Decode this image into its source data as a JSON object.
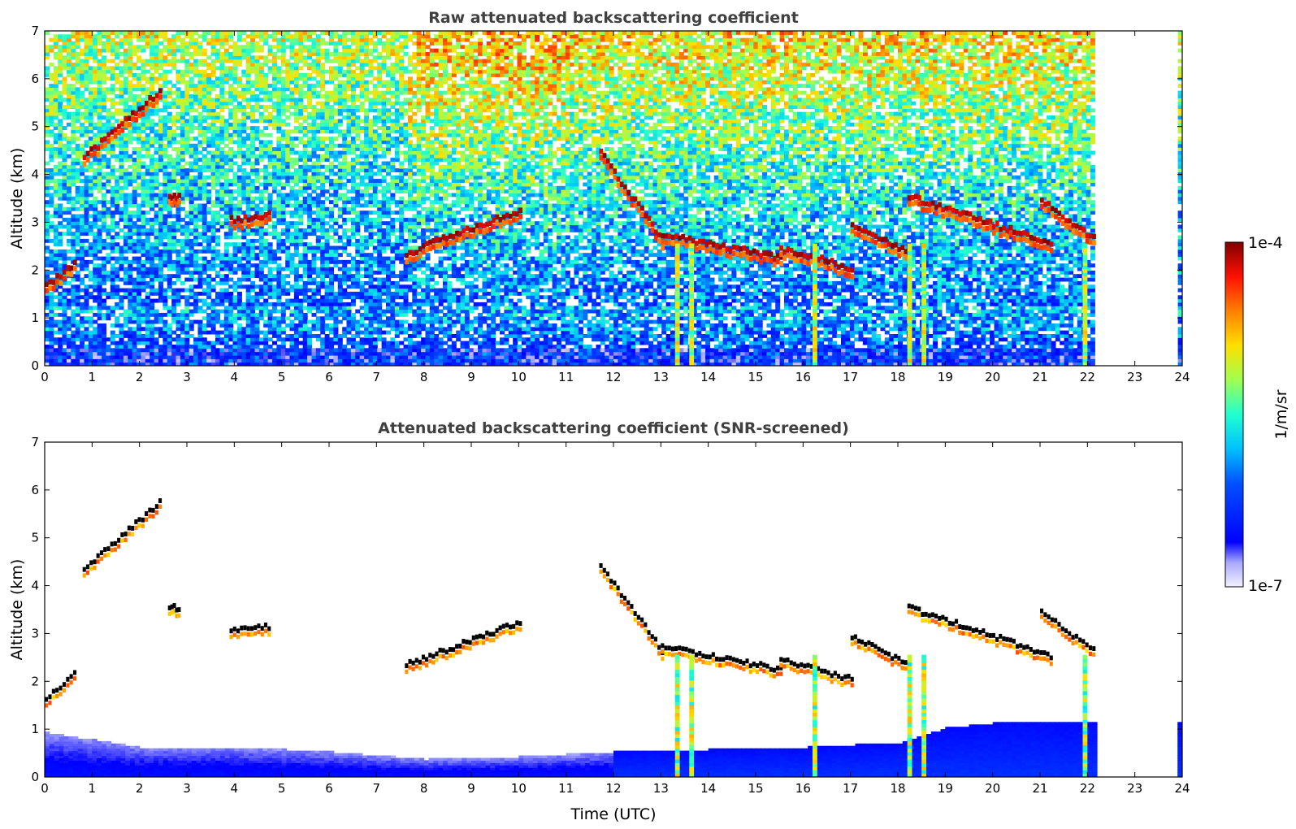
{
  "chart_data": [
    {
      "type": "heatmap",
      "title": "Raw attenuated backscattering coefficient",
      "xlabel": "",
      "ylabel": "Altitude (km)",
      "xlim": [
        0,
        24
      ],
      "ylim": [
        0,
        7
      ],
      "xticks": [
        "0",
        "1",
        "2",
        "3",
        "4",
        "5",
        "6",
        "7",
        "8",
        "9",
        "10",
        "11",
        "12",
        "13",
        "14",
        "15",
        "16",
        "17",
        "18",
        "19",
        "20",
        "21",
        "22",
        "23",
        "24"
      ],
      "yticks": [
        "0",
        "1",
        "2",
        "3",
        "4",
        "5",
        "6",
        "7"
      ],
      "data_gap_hours": [
        22.1,
        23.85
      ],
      "cloud_layers": [
        {
          "t_start": 0.0,
          "t_end": 0.6,
          "alt_km": [
            1.6,
            2.1
          ]
        },
        {
          "t_start": 0.8,
          "t_end": 2.4,
          "alt_km": [
            4.3,
            5.7
          ]
        },
        {
          "t_start": 2.6,
          "t_end": 2.8,
          "alt_km": [
            3.5,
            3.5
          ]
        },
        {
          "t_start": 3.9,
          "t_end": 4.7,
          "alt_km": [
            3.0,
            3.1
          ]
        },
        {
          "t_start": 7.6,
          "t_end": 10.0,
          "alt_km": [
            2.3,
            3.2
          ]
        },
        {
          "t_start": 11.7,
          "t_end": 13.0,
          "alt_km": [
            4.4,
            2.6
          ]
        },
        {
          "t_start": 13.0,
          "t_end": 15.5,
          "alt_km": [
            2.7,
            2.2
          ]
        },
        {
          "t_start": 15.5,
          "t_end": 17.0,
          "alt_km": [
            2.4,
            2.0
          ]
        },
        {
          "t_start": 17.0,
          "t_end": 18.2,
          "alt_km": [
            2.9,
            2.3
          ]
        },
        {
          "t_start": 18.2,
          "t_end": 21.2,
          "alt_km": [
            3.5,
            2.5
          ]
        },
        {
          "t_start": 21.0,
          "t_end": 22.1,
          "alt_km": [
            3.4,
            2.6
          ]
        }
      ],
      "precipitation_columns_hours": [
        13.3,
        13.6,
        16.2,
        18.2,
        18.5,
        21.9
      ]
    },
    {
      "type": "heatmap",
      "title": "Attenuated backscattering coefficient (SNR-screened)",
      "xlabel": "Time (UTC)",
      "ylabel": "Altitude (km)",
      "xlim": [
        0,
        24
      ],
      "ylim": [
        0,
        7
      ],
      "xticks": [
        "0",
        "1",
        "2",
        "3",
        "4",
        "5",
        "6",
        "7",
        "8",
        "9",
        "10",
        "11",
        "12",
        "13",
        "14",
        "15",
        "16",
        "17",
        "18",
        "19",
        "20",
        "21",
        "22",
        "23",
        "24"
      ],
      "yticks": [
        "0",
        "1",
        "2",
        "3",
        "4",
        "5",
        "6",
        "7"
      ],
      "boundary_layer_top_km": [
        [
          0,
          0.9
        ],
        [
          2,
          0.6
        ],
        [
          4,
          0.6
        ],
        [
          6,
          0.5
        ],
        [
          8,
          0.35
        ],
        [
          10,
          0.4
        ],
        [
          12,
          0.5
        ],
        [
          14,
          0.55
        ],
        [
          16,
          0.6
        ],
        [
          18,
          0.7
        ],
        [
          19,
          1.0
        ],
        [
          20,
          1.1
        ],
        [
          21,
          1.15
        ],
        [
          22,
          1.1
        ]
      ]
    }
  ],
  "colorbar": {
    "label": "1/m/sr",
    "max_label": "1e-4",
    "min_label": "1e-7",
    "scale": "log",
    "colormap": "jet"
  }
}
